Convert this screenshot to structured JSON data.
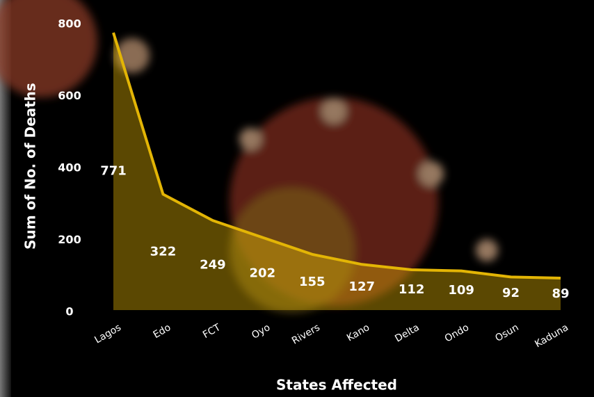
{
  "chart_data": {
    "type": "area",
    "y_label": "Sum of No. of Deaths",
    "x_label": "States Affected",
    "categories": [
      "Lagos",
      "Edo",
      "FCT",
      "Oyo",
      "Rivers",
      "Kano",
      "Delta",
      "Ondo",
      "Osun",
      "Kaduna"
    ],
    "values": [
      771,
      322,
      249,
      202,
      155,
      127,
      112,
      109,
      92,
      89
    ],
    "color": "#e3b505",
    "ylim": [
      0,
      800
    ],
    "yticks": [
      0,
      200,
      400,
      600,
      800
    ],
    "grid": false
  }
}
